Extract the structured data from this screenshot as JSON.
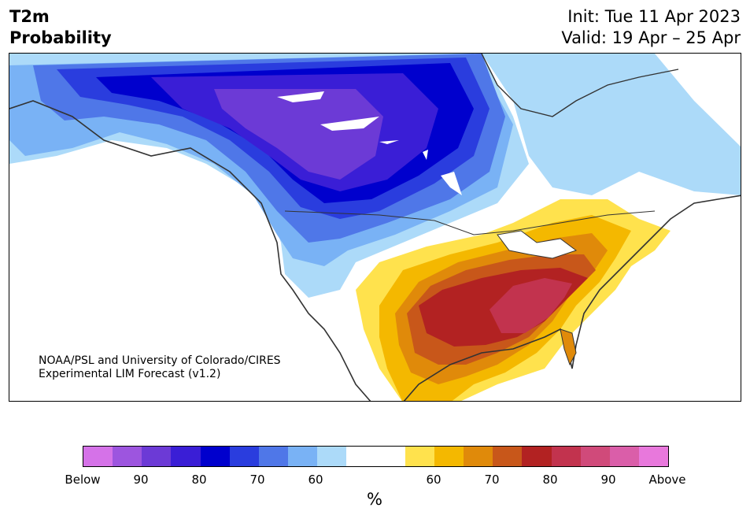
{
  "title": {
    "line1": "T2m",
    "line2": "Probability"
  },
  "init": {
    "line1": "Init: Tue 11 Apr 2023",
    "line2": "Valid: 19 Apr – 25 Apr"
  },
  "credit": {
    "line1": "NOAA/PSL and University of Colorado/CIRES",
    "line2": "Experimental LIM Forecast (v1.2)"
  },
  "colorbar": {
    "colors": [
      "#d572e8",
      "#9d55df",
      "#6c3ad6",
      "#3a1ed6",
      "#0000cd",
      "#2a3dde",
      "#4f77e8",
      "#79b2f5",
      "#acdaf9",
      "#ffffff",
      "#ffffff",
      "#ffe24d",
      "#f4b800",
      "#e08a0a",
      "#c8571a",
      "#b22222",
      "#c2334e",
      "#d04a7a",
      "#da5ea9",
      "#e878dc"
    ],
    "ticks": [
      "Below",
      "90",
      "80",
      "70",
      "60",
      "60",
      "70",
      "80",
      "90",
      "Above"
    ],
    "unit": "%"
  },
  "legend_levels": {
    "below": [
      "Below",
      "90",
      "80",
      "70",
      "60"
    ],
    "above": [
      "60",
      "70",
      "80",
      "90",
      "Above"
    ]
  }
}
